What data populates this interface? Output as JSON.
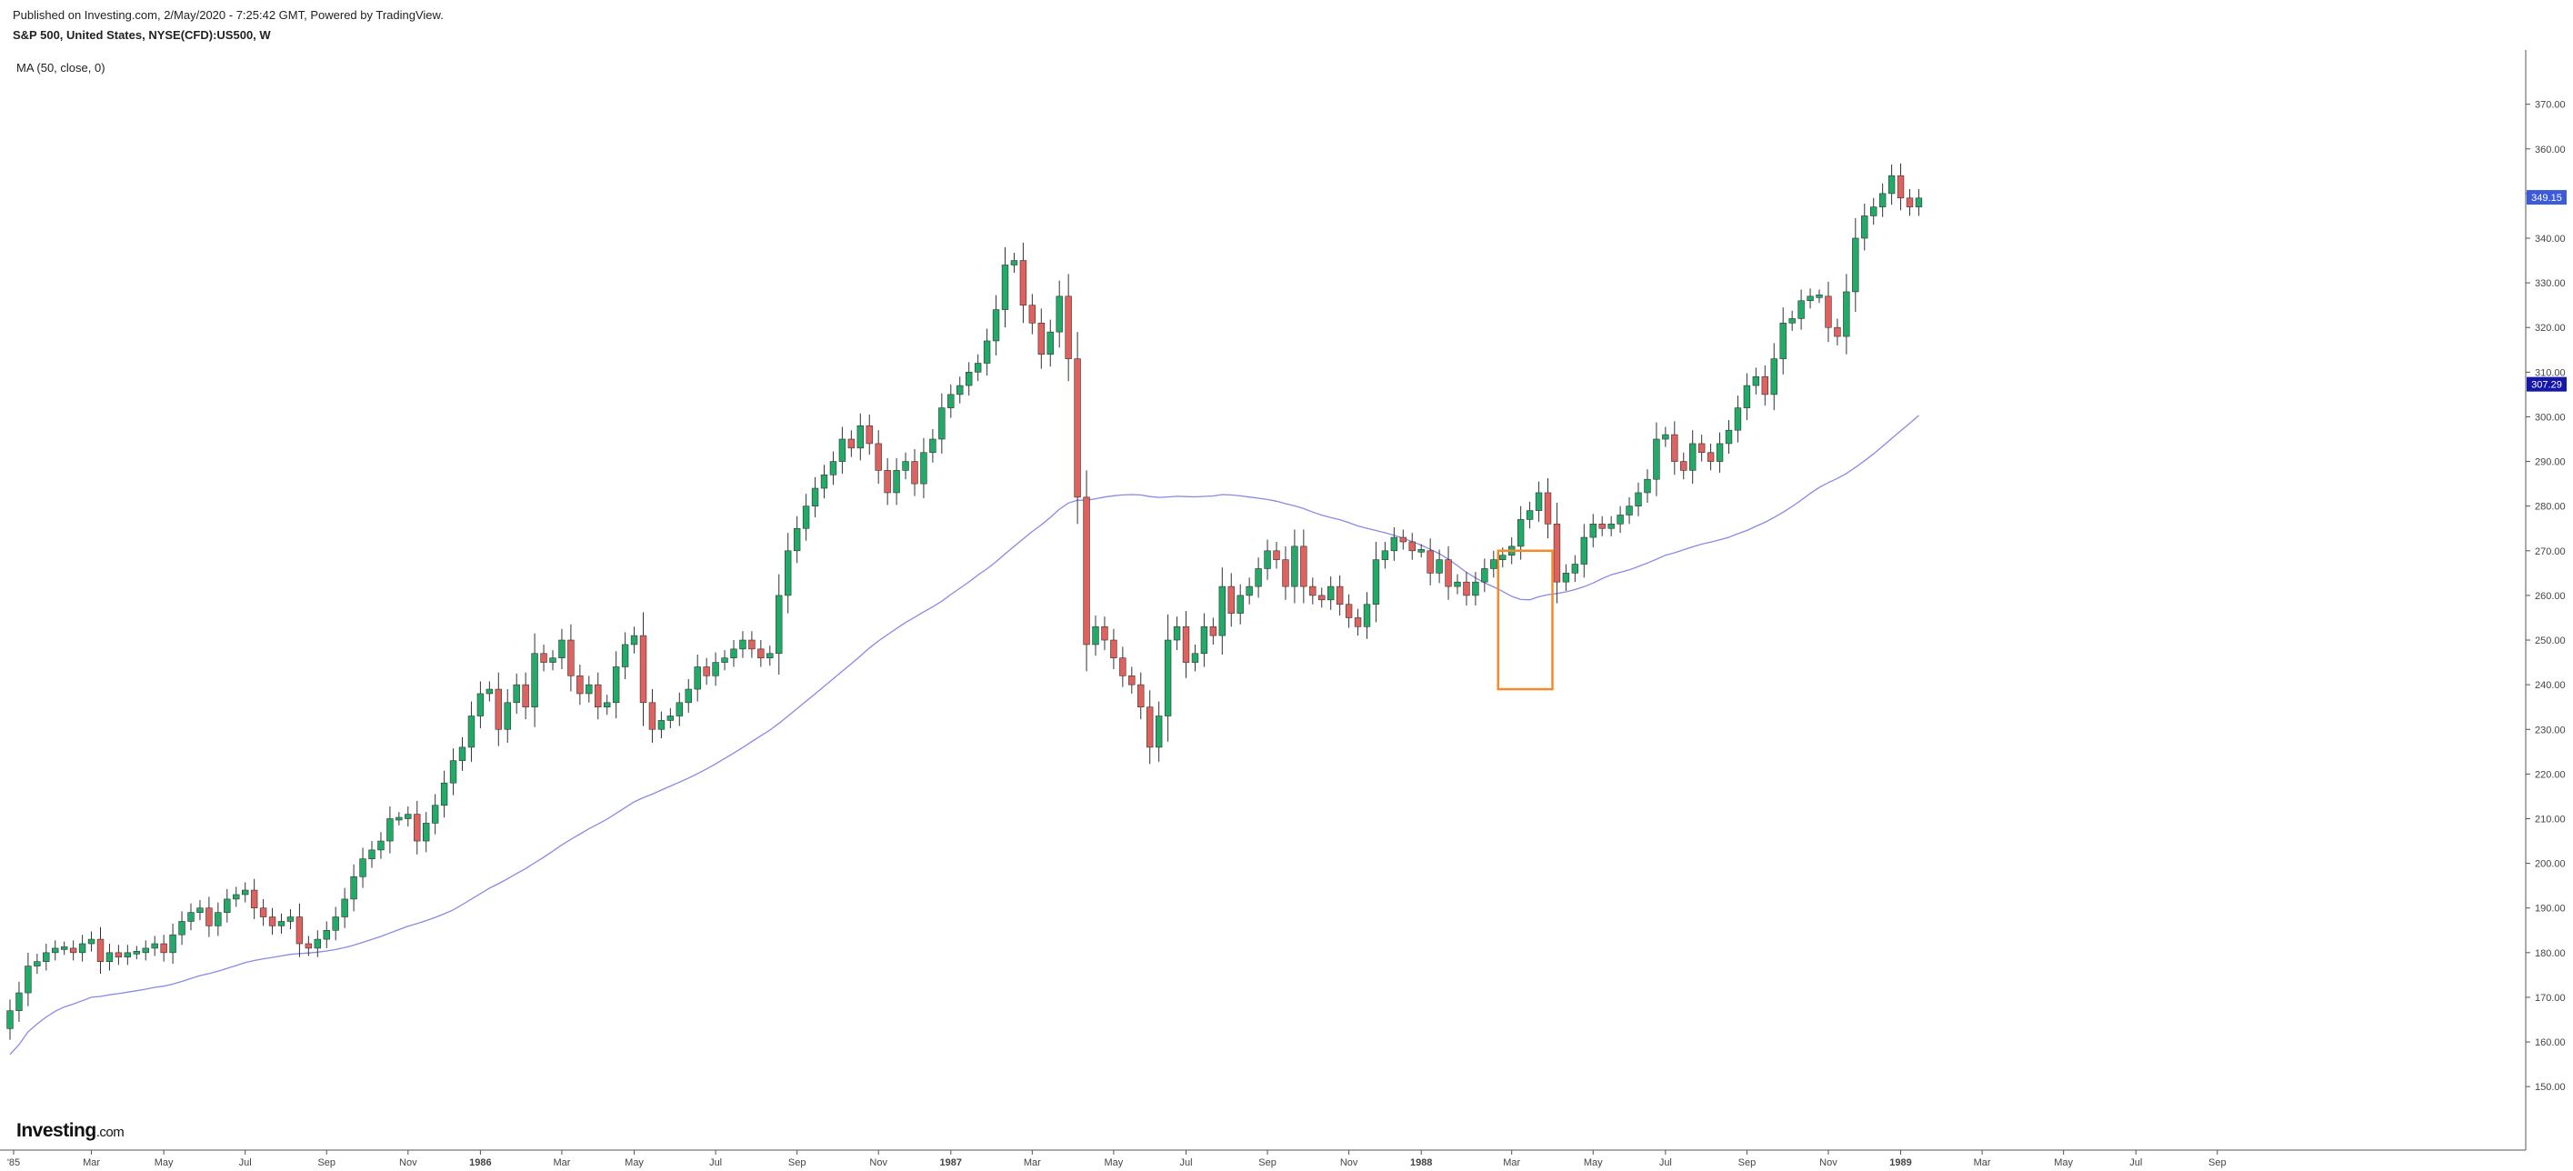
{
  "header": {
    "published": "Published on Investing.com, 2/May/2020 - 7:25:42 GMT, Powered by TradingView.",
    "symbol": "S&P 500, United States, NYSE(CFD):US500, W",
    "indicator": "MA (50, close, 0)"
  },
  "logo": {
    "name": "Investing",
    "suffix": ".com"
  },
  "colors": {
    "up": "#22ab68",
    "down": "#e0625f",
    "ma": "#8a88e8",
    "box": "#f58a2a",
    "priceTag": "#3b5bdb",
    "maTag": "#1517a9"
  },
  "chart_data": {
    "type": "candlestick",
    "title": "S&P 500, United States, NYSE(CFD):US500, W",
    "x_tick_labels": [
      "'85",
      "Mar",
      "May",
      "Jul",
      "Sep",
      "Nov",
      "1986",
      "Mar",
      "May",
      "Jul",
      "Sep",
      "Nov",
      "1987",
      "Mar",
      "May",
      "Jul",
      "Sep",
      "Nov",
      "1988",
      "Mar",
      "May",
      "Jul",
      "Sep",
      "Nov",
      "1989",
      "Mar",
      "May",
      "Jul",
      "Sep"
    ],
    "y_ticks": [
      150,
      160,
      170,
      180,
      190,
      200,
      210,
      220,
      230,
      240,
      250,
      260,
      270,
      280,
      290,
      300,
      310,
      320,
      330,
      340,
      350,
      360,
      370
    ],
    "ylim": [
      148,
      374
    ],
    "price_tag": "349.15",
    "ma_tag": "307.29",
    "annotation": {
      "type": "rectangle",
      "from_week": 165,
      "to_week": 170,
      "low": 239,
      "high": 270
    },
    "weekly_close": [
      167,
      171,
      177,
      178,
      180,
      181,
      181,
      180,
      182,
      183,
      178,
      180,
      179,
      180,
      180,
      181,
      182,
      180,
      184,
      187,
      189,
      190,
      186,
      189,
      192,
      193,
      194,
      190,
      188,
      186,
      187,
      188,
      182,
      181,
      183,
      185,
      188,
      192,
      197,
      201,
      203,
      205,
      210,
      210,
      211,
      205,
      209,
      213,
      218,
      223,
      226,
      233,
      238,
      239,
      230,
      236,
      240,
      235,
      247,
      245,
      246,
      250,
      242,
      238,
      240,
      235,
      236,
      244,
      249,
      251,
      236,
      230,
      232,
      233,
      236,
      239,
      244,
      242,
      245,
      246,
      248,
      250,
      248,
      246,
      247,
      260,
      270,
      275,
      280,
      284,
      287,
      290,
      295,
      293,
      298,
      294,
      288,
      283,
      288,
      290,
      285,
      292,
      295,
      302,
      305,
      307,
      310,
      312,
      317,
      324,
      334,
      335,
      325,
      321,
      314,
      319,
      327,
      313,
      282,
      249,
      253,
      250,
      246,
      242,
      240,
      235,
      226,
      233,
      250,
      253,
      245,
      247,
      253,
      251,
      262,
      256,
      260,
      262,
      266,
      270,
      268,
      262,
      271,
      262,
      260,
      259,
      262,
      258,
      255,
      253,
      258,
      268,
      270,
      273,
      272,
      270,
      270,
      265,
      268,
      262,
      263,
      260,
      263,
      266,
      268,
      269,
      271,
      277,
      279,
      283,
      276,
      263,
      265,
      267,
      273,
      276,
      275,
      276,
      278,
      280,
      283,
      286,
      295,
      296,
      290,
      288,
      294,
      292,
      290,
      294,
      297,
      302,
      307,
      309,
      305,
      313,
      321,
      322,
      326,
      327,
      327,
      320,
      318,
      328,
      340,
      345,
      347,
      350,
      354,
      349,
      347,
      349
    ]
  }
}
